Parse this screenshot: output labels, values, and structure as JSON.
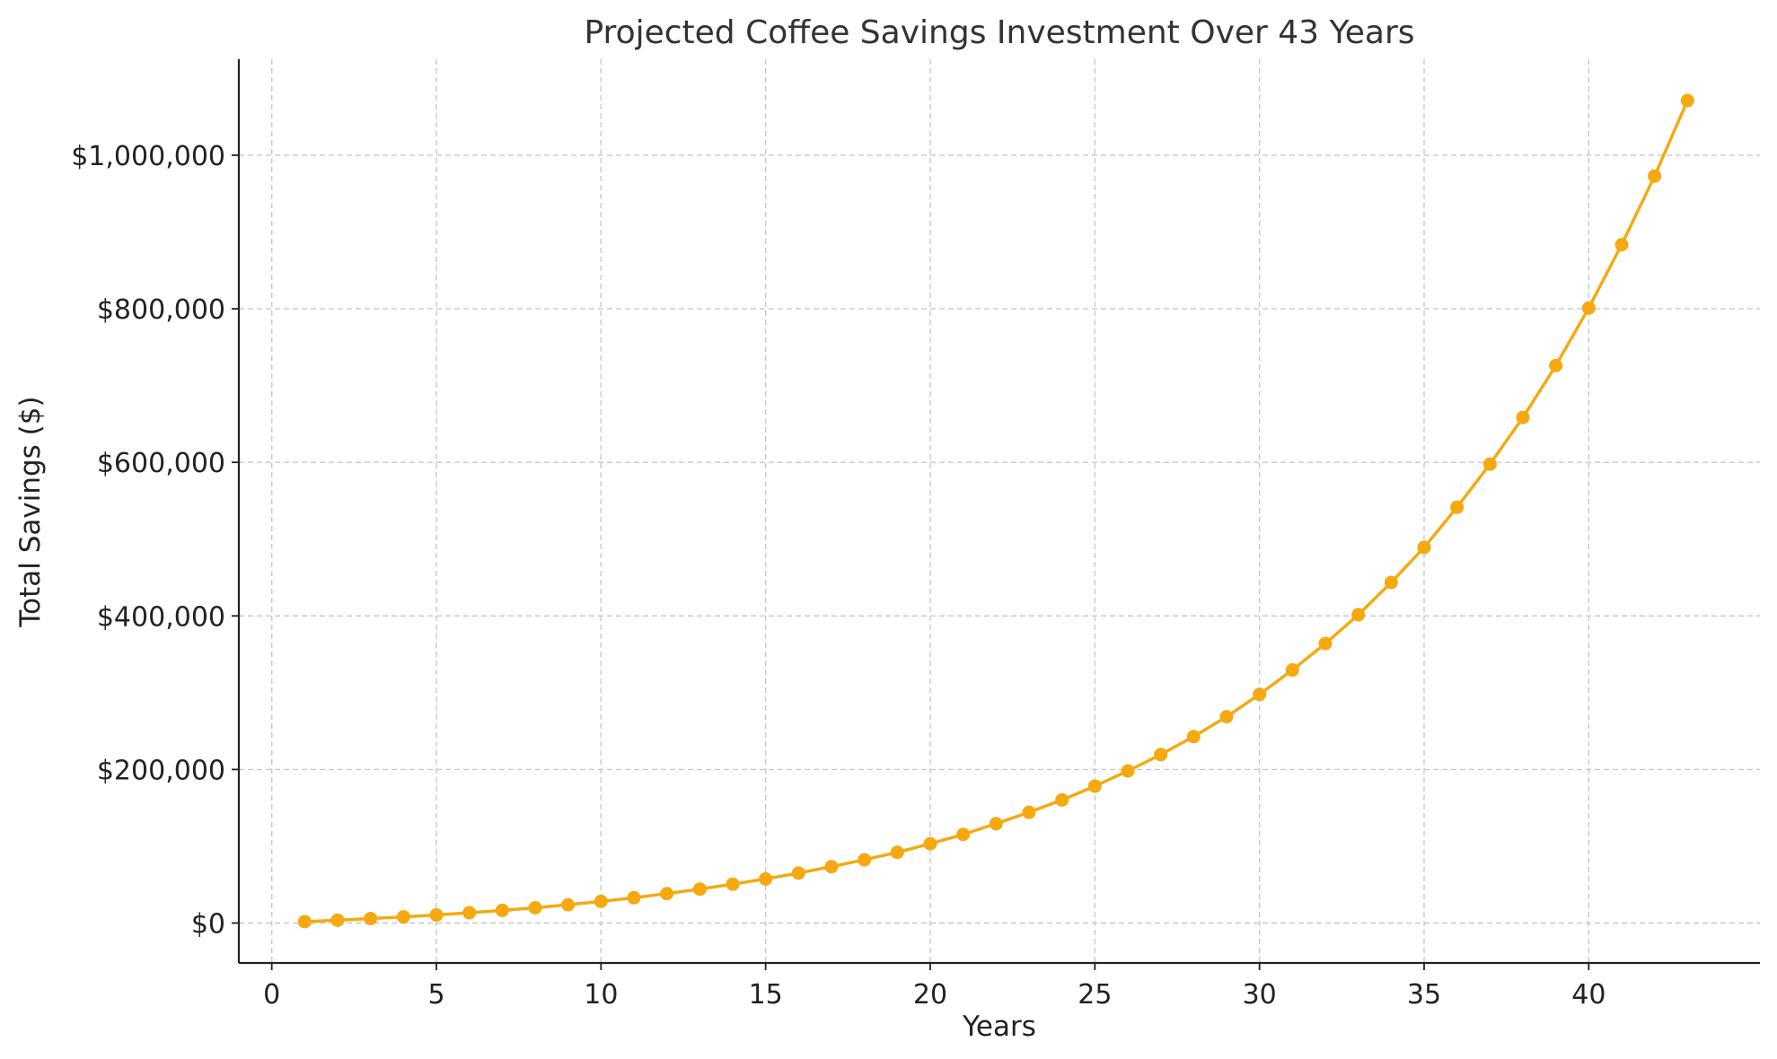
{
  "colors": {
    "series": "#f5a90f",
    "grid": "#c8c8c8",
    "axis": "#222222",
    "title": "#333333"
  },
  "chart_data": {
    "type": "line",
    "title": "Projected Coffee Savings Investment Over 43 Years",
    "xlabel": "Years",
    "ylabel": "Total Savings ($)",
    "xlim": [
      -1,
      45.2
    ],
    "ylim": [
      -52000,
      1125000
    ],
    "grid": true,
    "legend": "none",
    "x_ticks": [
      0,
      5,
      10,
      15,
      20,
      25,
      30,
      35,
      40
    ],
    "x_tick_labels": [
      "0",
      "5",
      "10",
      "15",
      "20",
      "25",
      "30",
      "35",
      "40"
    ],
    "y_ticks": [
      0,
      200000,
      400000,
      600000,
      800000,
      1000000
    ],
    "y_tick_labels": [
      "$0",
      "$200,000",
      "$400,000",
      "$600,000",
      "$800,000",
      "$1,000,000"
    ],
    "series": [
      {
        "x": [
          1,
          2,
          3,
          4,
          5,
          6,
          7,
          8,
          9,
          10,
          11,
          12,
          13,
          14,
          15,
          16,
          17,
          18,
          19,
          20,
          21,
          22,
          23,
          24,
          25,
          26,
          27,
          28,
          29,
          30,
          31,
          32,
          33,
          34,
          35,
          36,
          37,
          38,
          39,
          40,
          41,
          42,
          43
        ],
        "values": [
          1800,
          3700,
          5800,
          8000,
          10500,
          13400,
          16500,
          19900,
          23800,
          28200,
          33000,
          38300,
          44200,
          50600,
          57500,
          65100,
          73400,
          82400,
          92100,
          103300,
          115500,
          129400,
          144200,
          160300,
          178300,
          198000,
          219400,
          242800,
          268700,
          297700,
          329600,
          364000,
          401500,
          443500,
          489200,
          541500,
          597600,
          658400,
          726000,
          801000,
          883500,
          972800,
          1071200
        ]
      }
    ]
  }
}
